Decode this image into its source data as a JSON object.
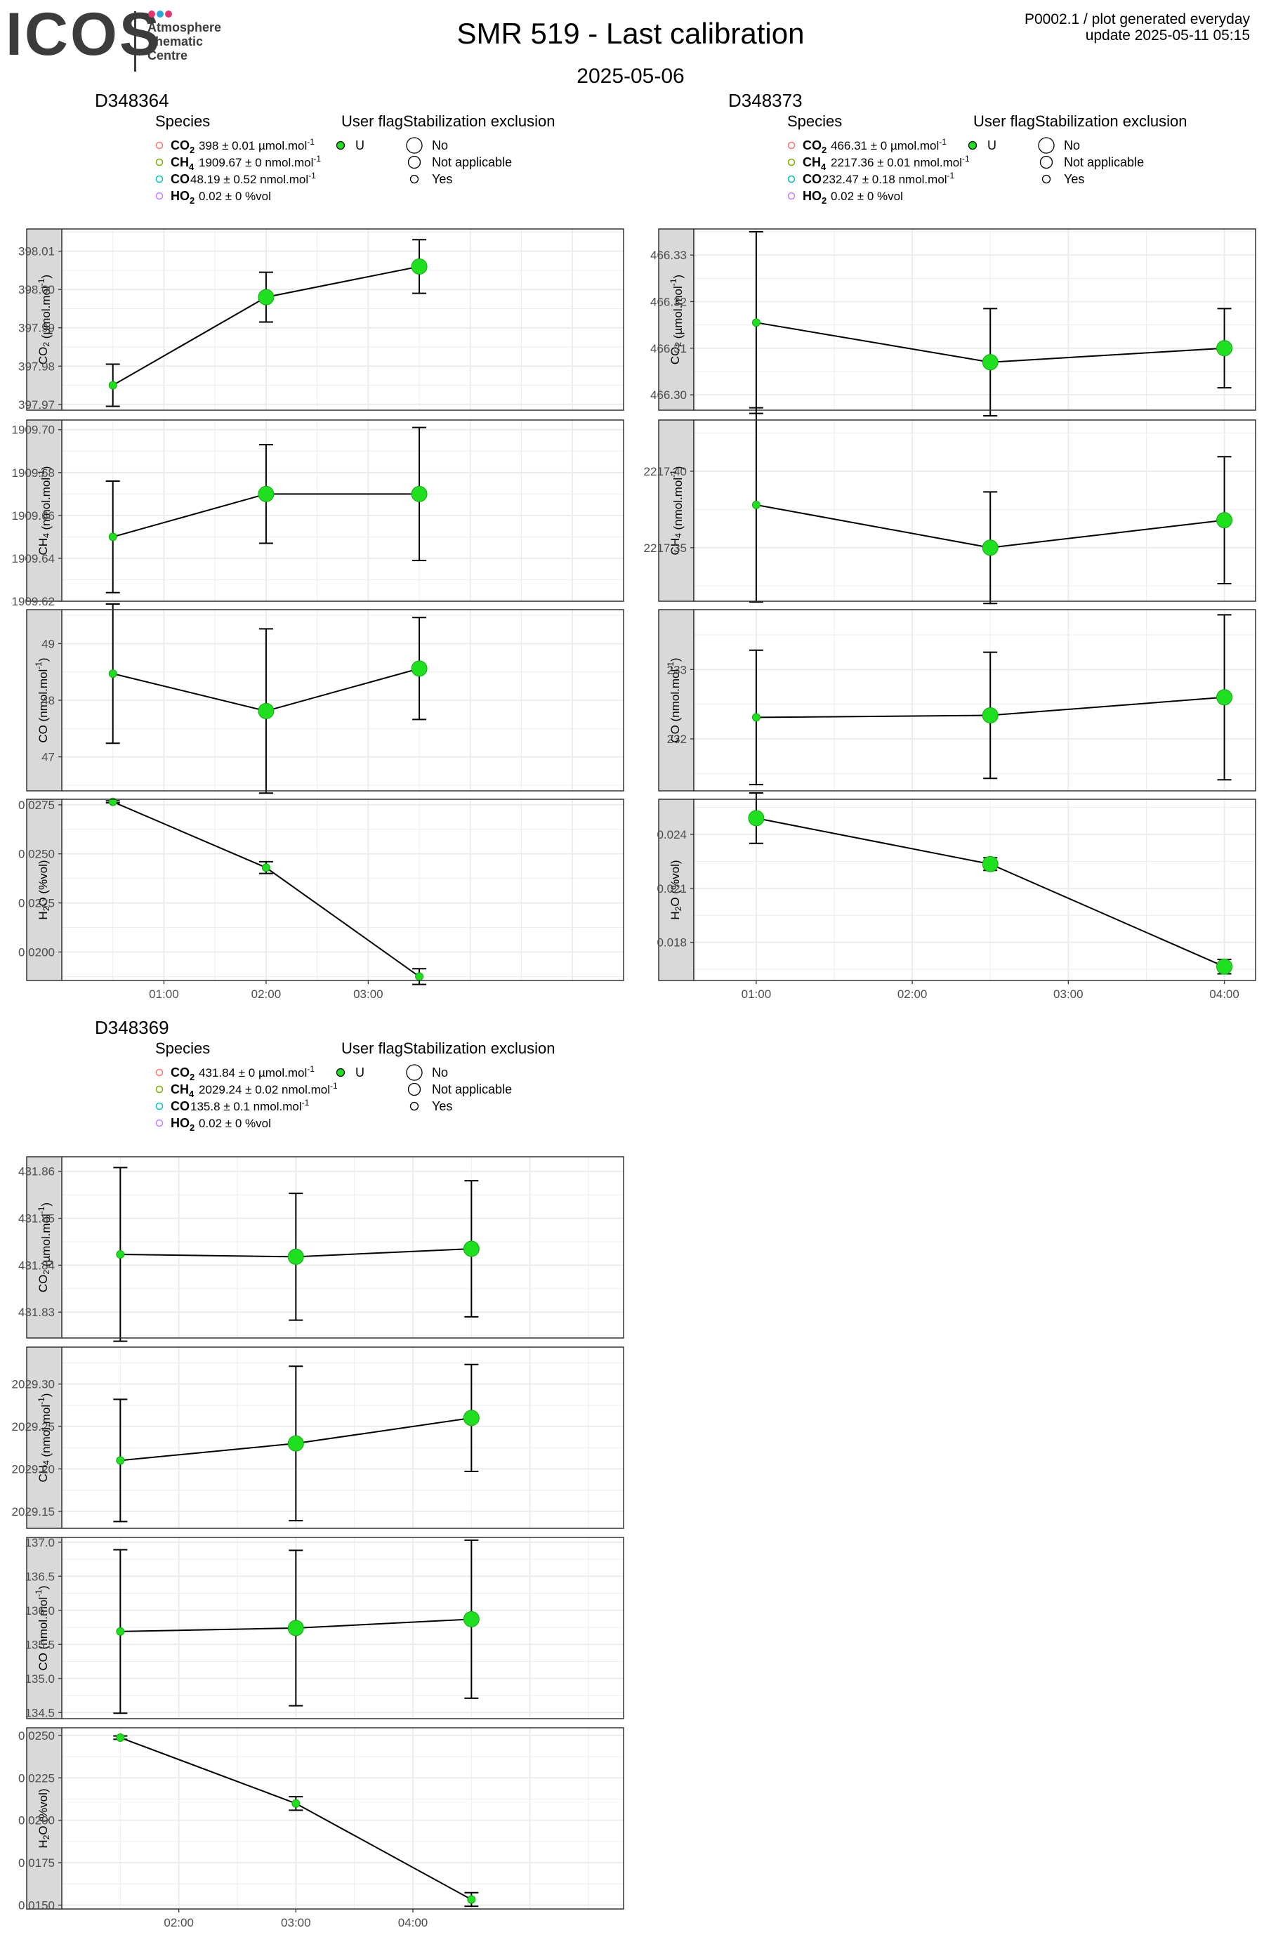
{
  "header": {
    "logo_text": "ICOS",
    "logo_subtitle": [
      "Atmosphere",
      "Thematic",
      "Centre"
    ],
    "logo_dot_colors": [
      "#e6336f",
      "#29a8e0",
      "#e6336f"
    ],
    "title": "SMR 519 - Last calibration",
    "date": "2025-05-06",
    "info_line1": "P0002.1 / plot generated everyday",
    "info_line2": "update  2025-05-11 05:15"
  },
  "legend_labels": {
    "species_title": "Species",
    "userflag_title": "User flag",
    "stab_title": "Stabilization exclusion",
    "userflag_value": "U",
    "stab_values": [
      "No",
      "Not applicable",
      "Yes"
    ]
  },
  "colors": {
    "point": "#1ee01e",
    "point_stroke": "#13a813",
    "co2": "#f8766d",
    "ch4": "#7cae00",
    "co": "#00bfc4",
    "h2o": "#c77cff",
    "strip": "#d9d9d9",
    "grid": "#ebebeb"
  },
  "chart_data": [
    {
      "type": "line",
      "title": "D348364",
      "legend": [
        {
          "species": "CO2",
          "sub": "2",
          "stats": "398 ± 0.01 µmol.mol",
          "sup": "-1"
        },
        {
          "species": "CH4",
          "sub": "4",
          "stats": "1909.67 ± 0 nmol.mol",
          "sup": "-1"
        },
        {
          "species": "CO",
          "sub": "",
          "stats": "48.19 ± 0.52 nmol.mol",
          "sup": "-1"
        },
        {
          "species": "H2O",
          "sub": "2",
          "stats": "0.02 ± 0 %vol",
          "sup": ""
        }
      ],
      "x_ticks": [
        "01:00",
        "02:00",
        "03:00"
      ],
      "panels": [
        {
          "ylabel": "CO2 (µmol.mol-1)",
          "ylim": [
            397.9685,
            398.0158
          ],
          "yticks": [
            397.97,
            397.98,
            397.99,
            398.0,
            398.01
          ],
          "tick_decimals": 2,
          "points": [
            {
              "x": 0.5,
              "y": 397.975,
              "err": 0.0055,
              "size": "small"
            },
            {
              "x": 2.0,
              "y": 397.998,
              "err": 0.0065,
              "size": "large"
            },
            {
              "x": 3.5,
              "y": 398.006,
              "err": 0.007,
              "size": "large"
            }
          ]
        },
        {
          "ylabel": "CH4 (nmol.mol-1)",
          "ylim": [
            1909.62,
            1909.7045
          ],
          "yticks": [
            1909.62,
            1909.64,
            1909.66,
            1909.68,
            1909.7
          ],
          "tick_decimals": 2,
          "points": [
            {
              "x": 0.5,
              "y": 1909.65,
              "err": 0.026,
              "size": "small"
            },
            {
              "x": 2.0,
              "y": 1909.67,
              "err": 0.023,
              "size": "large"
            },
            {
              "x": 3.5,
              "y": 1909.67,
              "err": 0.031,
              "size": "large"
            }
          ]
        },
        {
          "ylabel": "CO (nmol.mol-1)",
          "ylim": [
            46.4,
            49.6
          ],
          "yticks": [
            47,
            48,
            49
          ],
          "tick_decimals": 0,
          "points": [
            {
              "x": 0.5,
              "y": 48.47,
              "err": 1.23,
              "size": "small"
            },
            {
              "x": 2.0,
              "y": 47.81,
              "err": 1.45,
              "size": "large"
            },
            {
              "x": 3.5,
              "y": 48.56,
              "err": 0.9,
              "size": "large"
            }
          ]
        },
        {
          "ylabel": "H2O (%vol)",
          "ylim": [
            0.01855,
            0.02778
          ],
          "yticks": [
            0.02,
            0.0225,
            0.025,
            0.0275
          ],
          "tick_decimals": 4,
          "points": [
            {
              "x": 0.5,
              "y": 0.02765,
              "err": 5e-05,
              "size": "small"
            },
            {
              "x": 2.0,
              "y": 0.0243,
              "err": 0.0003,
              "size": "small"
            },
            {
              "x": 3.5,
              "y": 0.01875,
              "err": 0.0004,
              "size": "small"
            }
          ]
        }
      ]
    },
    {
      "type": "line",
      "title": "D348373",
      "legend": [
        {
          "species": "CO2",
          "sub": "2",
          "stats": "466.31 ± 0 µmol.mol",
          "sup": "-1"
        },
        {
          "species": "CH4",
          "sub": "4",
          "stats": "2217.36 ± 0.01 nmol.mol",
          "sup": "-1"
        },
        {
          "species": "CO",
          "sub": "",
          "stats": "232.47 ± 0.18 nmol.mol",
          "sup": "-1"
        },
        {
          "species": "H2O",
          "sub": "2",
          "stats": "0.02 ± 0 %vol",
          "sup": ""
        }
      ],
      "x_ticks": [
        "01:00",
        "02:00",
        "03:00",
        "04:00"
      ],
      "panels": [
        {
          "ylabel": "CO2 (µmol.mol-1)",
          "ylim": [
            466.2967,
            466.3356
          ],
          "yticks": [
            466.3,
            466.31,
            466.32,
            466.33
          ],
          "tick_decimals": 2,
          "points": [
            {
              "x": 1.0,
              "y": 466.3155,
              "err": 0.0195,
              "size": "small"
            },
            {
              "x": 2.5,
              "y": 466.307,
              "err": 0.0115,
              "size": "large"
            },
            {
              "x": 4.0,
              "y": 466.31,
              "err": 0.0085,
              "size": "large"
            }
          ]
        },
        {
          "ylabel": "CH4 (nmol.mol-1)",
          "ylim": [
            2217.315,
            2217.4335
          ],
          "yticks": [
            2217.35,
            2217.4
          ],
          "tick_decimals": 2,
          "points": [
            {
              "x": 1.0,
              "y": 2217.378,
              "err": 0.0635,
              "size": "small"
            },
            {
              "x": 2.5,
              "y": 2217.35,
              "err": 0.0365,
              "size": "large"
            },
            {
              "x": 4.0,
              "y": 2217.368,
              "err": 0.0415,
              "size": "large"
            }
          ]
        },
        {
          "ylabel": "CO (nmol.mol-1)",
          "ylim": [
            231.25,
            233.865
          ],
          "yticks": [
            232,
            233
          ],
          "tick_decimals": 0,
          "points": [
            {
              "x": 1.0,
              "y": 232.31,
              "err": 0.97,
              "size": "small"
            },
            {
              "x": 2.5,
              "y": 232.34,
              "err": 0.91,
              "size": "large"
            },
            {
              "x": 4.0,
              "y": 232.6,
              "err": 1.19,
              "size": "large"
            }
          ]
        },
        {
          "ylabel": "H2O (%vol)",
          "ylim": [
            0.01588,
            0.02595
          ],
          "yticks": [
            0.018,
            0.021,
            0.024
          ],
          "tick_decimals": 3,
          "points": [
            {
              "x": 1.0,
              "y": 0.0249,
              "err": 0.0014,
              "size": "large"
            },
            {
              "x": 2.5,
              "y": 0.02235,
              "err": 0.00035,
              "size": "large"
            },
            {
              "x": 4.0,
              "y": 0.01665,
              "err": 0.0004,
              "size": "large"
            }
          ]
        }
      ]
    },
    {
      "type": "line",
      "title": "D348369",
      "legend": [
        {
          "species": "CO2",
          "sub": "2",
          "stats": "431.84 ± 0 µmol.mol",
          "sup": "-1"
        },
        {
          "species": "CH4",
          "sub": "4",
          "stats": "2029.24 ± 0.02 nmol.mol",
          "sup": "-1"
        },
        {
          "species": "CO",
          "sub": "",
          "stats": "135.8 ± 0.1 nmol.mol",
          "sup": "-1"
        },
        {
          "species": "H2O",
          "sub": "2",
          "stats": "0.02 ± 0 %vol",
          "sup": ""
        }
      ],
      "x_ticks": [
        "02:00",
        "03:00",
        "04:00"
      ],
      "panels": [
        {
          "ylabel": "CO2 (µmol.mol-1)",
          "ylim": [
            431.8245,
            431.8631
          ],
          "yticks": [
            431.83,
            431.84,
            431.85,
            431.86
          ],
          "tick_decimals": 2,
          "points": [
            {
              "x": 1.5,
              "y": 431.8423,
              "err": 0.0185,
              "size": "small"
            },
            {
              "x": 3.0,
              "y": 431.8418,
              "err": 0.0135,
              "size": "large"
            },
            {
              "x": 4.5,
              "y": 431.8435,
              "err": 0.0145,
              "size": "large"
            }
          ]
        },
        {
          "ylabel": "CH4 (nmol.mol-1)",
          "ylim": [
            2029.13,
            2029.3435
          ],
          "yticks": [
            2029.15,
            2029.2,
            2029.25,
            2029.3
          ],
          "tick_decimals": 2,
          "points": [
            {
              "x": 1.5,
              "y": 2029.21,
              "err": 0.072,
              "size": "small"
            },
            {
              "x": 3.0,
              "y": 2029.23,
              "err": 0.091,
              "size": "large"
            },
            {
              "x": 4.5,
              "y": 2029.26,
              "err": 0.063,
              "size": "large"
            }
          ]
        },
        {
          "ylabel": "CO (nmol.mol-1)",
          "ylim": [
            134.41,
            137.07
          ],
          "yticks": [
            134.5,
            135.0,
            135.5,
            136.0,
            136.5,
            137.0
          ],
          "tick_decimals": 1,
          "points": [
            {
              "x": 1.5,
              "y": 135.69,
              "err": 1.2,
              "size": "small"
            },
            {
              "x": 3.0,
              "y": 135.74,
              "err": 1.14,
              "size": "large"
            },
            {
              "x": 4.5,
              "y": 135.87,
              "err": 1.16,
              "size": "large"
            }
          ]
        },
        {
          "ylabel": "H2O (%vol)",
          "ylim": [
            0.01477,
            0.02545
          ],
          "yticks": [
            0.015,
            0.0175,
            0.02,
            0.0225,
            0.025
          ],
          "tick_decimals": 4,
          "points": [
            {
              "x": 1.5,
              "y": 0.02487,
              "err": 0.0001,
              "size": "small"
            },
            {
              "x": 3.0,
              "y": 0.02099,
              "err": 0.0004,
              "size": "small"
            },
            {
              "x": 4.5,
              "y": 0.01533,
              "err": 0.0004,
              "size": "small"
            }
          ]
        }
      ]
    }
  ]
}
